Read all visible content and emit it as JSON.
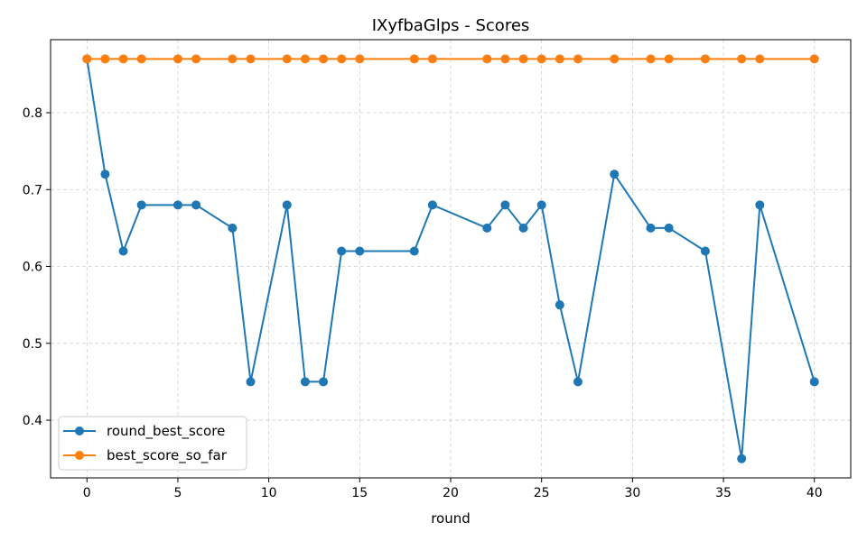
{
  "chart_data": {
    "type": "line",
    "title": "IXyfbaGlps - Scores",
    "xlabel": "round",
    "ylabel": "",
    "xlim": [
      -2,
      42
    ],
    "ylim": [
      0.325,
      0.895
    ],
    "xticks": [
      0,
      5,
      10,
      15,
      20,
      25,
      30,
      35,
      40
    ],
    "yticks": [
      0.4,
      0.5,
      0.6,
      0.7,
      0.8
    ],
    "xtick_labels": [
      "0",
      "5",
      "10",
      "15",
      "20",
      "25",
      "30",
      "35",
      "40"
    ],
    "ytick_labels": [
      "0.4",
      "0.5",
      "0.6",
      "0.7",
      "0.8"
    ],
    "grid": true,
    "legend_position": "bottom-left",
    "x": [
      0,
      1,
      2,
      3,
      5,
      6,
      8,
      9,
      11,
      12,
      13,
      14,
      15,
      18,
      19,
      22,
      23,
      24,
      25,
      26,
      27,
      29,
      31,
      32,
      34,
      36,
      37,
      40
    ],
    "series": [
      {
        "name": "round_best_score",
        "color": "#1f77b4",
        "values": [
          0.87,
          0.72,
          0.62,
          0.68,
          0.68,
          0.68,
          0.65,
          0.45,
          0.68,
          0.45,
          0.45,
          0.62,
          0.62,
          0.62,
          0.68,
          0.65,
          0.68,
          0.65,
          0.68,
          0.55,
          0.45,
          0.72,
          0.65,
          0.65,
          0.62,
          0.35,
          0.68,
          0.45
        ]
      },
      {
        "name": "best_score_so_far",
        "color": "#ff7f0e",
        "values": [
          0.87,
          0.87,
          0.87,
          0.87,
          0.87,
          0.87,
          0.87,
          0.87,
          0.87,
          0.87,
          0.87,
          0.87,
          0.87,
          0.87,
          0.87,
          0.87,
          0.87,
          0.87,
          0.87,
          0.87,
          0.87,
          0.87,
          0.87,
          0.87,
          0.87,
          0.87,
          0.87,
          0.87
        ]
      }
    ]
  }
}
